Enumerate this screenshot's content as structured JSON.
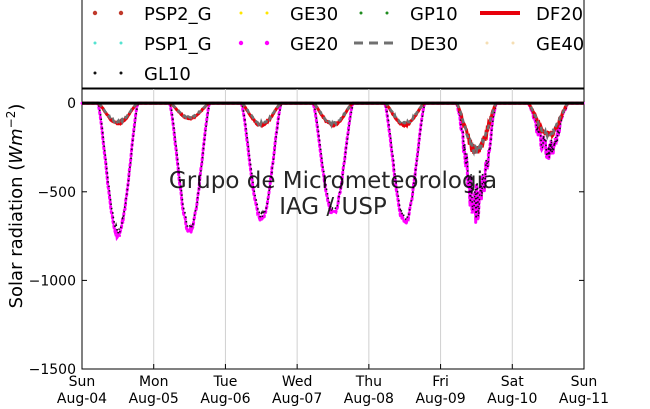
{
  "chart_data": {
    "type": "line",
    "title": "",
    "watermark": [
      "Grupo de Micrometeorologia",
      "IAG / USP"
    ],
    "ylabel": "Solar radiation ($Wm^{-2}$)",
    "ylabel_text": "Solar radiation (",
    "ylabel_unit": "Wm",
    "ylabel_exp": "−2",
    "ylabel_close": ")",
    "xlabel": "",
    "ylim": [
      -1500,
      80
    ],
    "xlim": [
      0,
      7
    ],
    "grid": "vertical",
    "y_ticks": [
      0,
      -500,
      -1000,
      -1500
    ],
    "y_tick_labels": [
      "0",
      "−500",
      "−1000",
      "−1500"
    ],
    "x_ticks": [
      0,
      1,
      2,
      3,
      4,
      5,
      6,
      7
    ],
    "x_tick_labels": [
      [
        "Sun",
        "Aug-04"
      ],
      [
        "Mon",
        "Aug-05"
      ],
      [
        "Tue",
        "Aug-06"
      ],
      [
        "Wed",
        "Aug-07"
      ],
      [
        "Thu",
        "Aug-08"
      ],
      [
        "Fri",
        "Aug-09"
      ],
      [
        "Sat",
        "Aug-10"
      ],
      [
        "Sun",
        "Aug-11"
      ]
    ],
    "legend_placement": "top",
    "legend": [
      {
        "name": "PSP2_G",
        "color": "#c0392b",
        "style": "dotted-large"
      },
      {
        "name": "GE30",
        "color": "#ffe600",
        "style": "dotted"
      },
      {
        "name": "GP10",
        "color": "#1f8c1f",
        "style": "dotted"
      },
      {
        "name": "DF20",
        "color": "#e8000b",
        "style": "solid-thick"
      },
      {
        "name": "PSP1_G",
        "color": "#55e3d1",
        "style": "dotted"
      },
      {
        "name": "GE20",
        "color": "#ff00ff",
        "style": "dotted-large"
      },
      {
        "name": "DE30",
        "color": "#707070",
        "style": "dashed"
      },
      {
        "name": "GE40",
        "color": "#f5deb3",
        "style": "dotted"
      },
      {
        "name": "GL10",
        "color": "#111111",
        "style": "dotted"
      }
    ],
    "zero_line": 0,
    "days": [
      {
        "day": "Aug-04",
        "global_peak": -760,
        "diffuse_peak": -120
      },
      {
        "day": "Aug-05",
        "global_peak": -740,
        "diffuse_peak": -90
      },
      {
        "day": "Aug-06",
        "global_peak": -670,
        "diffuse_peak": -130
      },
      {
        "day": "Aug-07",
        "global_peak": -640,
        "diffuse_peak": -130
      },
      {
        "day": "Aug-08",
        "global_peak": -690,
        "diffuse_peak": -130
      },
      {
        "day": "Aug-09",
        "global_peak": -700,
        "diffuse_peak": -300
      },
      {
        "day": "Aug-10",
        "global_peak": -320,
        "diffuse_peak": -200
      }
    ]
  }
}
